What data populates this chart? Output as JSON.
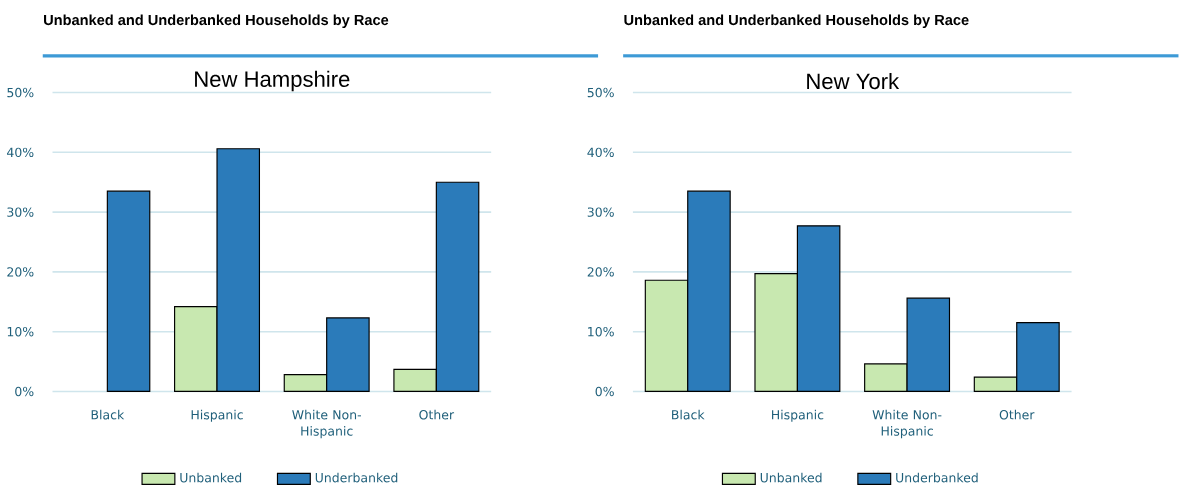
{
  "chart_data": [
    {
      "type": "bar",
      "title": "Unbanked and Underbanked Households by Race",
      "subtitle": "New Hampshire",
      "categories": [
        "Black",
        "Hispanic",
        "White Non-Hispanic",
        "Other"
      ],
      "series": [
        {
          "name": "Unbanked",
          "color": "#c8e8b0",
          "values": [
            null,
            14.2,
            2.8,
            3.7
          ]
        },
        {
          "name": "Underbanked",
          "color": "#2b7bba",
          "values": [
            33.5,
            40.6,
            12.3,
            35.0
          ]
        }
      ],
      "ylim": [
        0,
        50
      ],
      "yticks": [
        {
          "value": 0,
          "label": "0%"
        },
        {
          "value": 10,
          "label": "10%"
        },
        {
          "value": 20,
          "label": "20%"
        },
        {
          "value": 30,
          "label": "30%"
        },
        {
          "value": 40,
          "label": "40%"
        },
        {
          "value": 50,
          "label": "50%"
        }
      ],
      "grid": "y",
      "legend": "bottom"
    },
    {
      "type": "bar",
      "title": "Unbanked and Underbanked Households by Race",
      "subtitle": "New York",
      "categories": [
        "Black",
        "Hispanic",
        "White Non-Hispanic",
        "Other"
      ],
      "series": [
        {
          "name": "Unbanked",
          "color": "#c8e8b0",
          "values": [
            18.6,
            19.7,
            4.6,
            2.4
          ]
        },
        {
          "name": "Underbanked",
          "color": "#2b7bba",
          "values": [
            33.5,
            27.7,
            15.6,
            11.5
          ]
        }
      ],
      "ylim": [
        0,
        50
      ],
      "yticks": [
        {
          "value": 0,
          "label": "0%"
        },
        {
          "value": 10,
          "label": "10%"
        },
        {
          "value": 20,
          "label": "20%"
        },
        {
          "value": 30,
          "label": "30%"
        },
        {
          "value": 40,
          "label": "40%"
        },
        {
          "value": 50,
          "label": "50%"
        }
      ],
      "grid": "y",
      "legend": "bottom"
    }
  ]
}
